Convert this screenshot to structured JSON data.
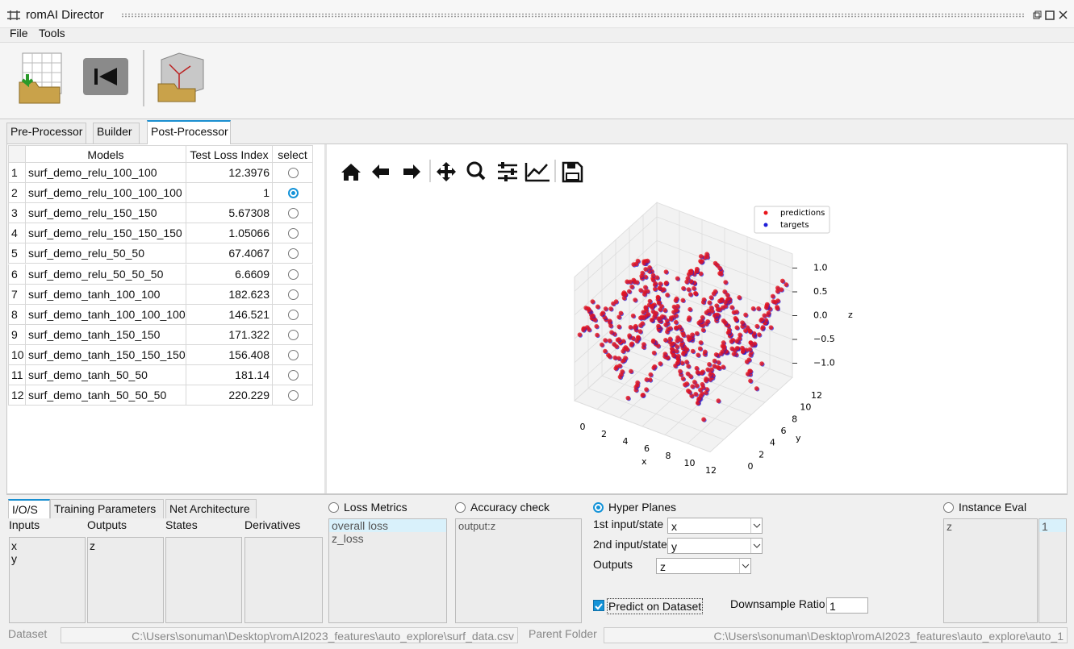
{
  "window": {
    "title": "romAI Director"
  },
  "menu": [
    "File",
    "Tools"
  ],
  "tabs": [
    "Pre-Processor",
    "Builder",
    "Post-Processor"
  ],
  "active_tab": 2,
  "models_table": {
    "headers": [
      "Models",
      "Test Loss Index",
      "select"
    ],
    "rows": [
      [
        1,
        "surf_demo_relu_100_100",
        12.3976
      ],
      [
        2,
        "surf_demo_relu_100_100_100",
        1
      ],
      [
        3,
        "surf_demo_relu_150_150",
        5.67308
      ],
      [
        4,
        "surf_demo_relu_150_150_150",
        1.05066
      ],
      [
        5,
        "surf_demo_relu_50_50",
        67.4067
      ],
      [
        6,
        "surf_demo_relu_50_50_50",
        6.6609
      ],
      [
        7,
        "surf_demo_tanh_100_100",
        182.623
      ],
      [
        8,
        "surf_demo_tanh_100_100_100",
        146.521
      ],
      [
        9,
        "surf_demo_tanh_150_150",
        171.322
      ],
      [
        10,
        "surf_demo_tanh_150_150_150",
        156.408
      ],
      [
        11,
        "surf_demo_tanh_50_50",
        181.14
      ],
      [
        12,
        "surf_demo_tanh_50_50_50",
        220.229
      ]
    ],
    "selected": 1
  },
  "plot": {
    "legend": [
      {
        "name": "predictions",
        "color": "#e8141a"
      },
      {
        "name": "targets",
        "color": "#1f1fd8"
      }
    ],
    "xlabel": "x",
    "ylabel": "y",
    "zlabel": "z",
    "xticks": [
      0,
      2,
      4,
      6,
      8,
      10,
      12
    ],
    "yticks": [
      0,
      2,
      4,
      6,
      8,
      10,
      12
    ],
    "zticks": [
      {
        "value": 1,
        "label": "1.0"
      },
      {
        "value": 0.5,
        "label": "0.5"
      },
      {
        "value": 0,
        "label": "0.0"
      },
      {
        "value": -0.5,
        "label": "−0.5"
      },
      {
        "value": -1,
        "label": "−1.0"
      }
    ]
  },
  "bottom_tabs": [
    "I/O/S",
    "Training Parameters",
    "Net Architecture"
  ],
  "active_bottom_tab": 0,
  "ios": {
    "headers": [
      "Inputs",
      "Outputs",
      "States",
      "Derivatives"
    ],
    "inputs": [
      "x",
      "y"
    ],
    "outputs": [
      "z"
    ]
  },
  "loss_metrics": {
    "label": "Loss Metrics",
    "selected": false,
    "items": [
      "overall loss",
      "z_loss"
    ]
  },
  "accuracy_check": {
    "label": "Accuracy check",
    "selected": false,
    "items": [
      "output:z"
    ]
  },
  "hyper_planes": {
    "label": "Hyper Planes",
    "selected": true,
    "fields": [
      {
        "label": "1st input/state",
        "value": "x"
      },
      {
        "label": "2nd input/state",
        "value": "y"
      },
      {
        "label": "Outputs",
        "value": "z"
      }
    ],
    "predict_on_dataset": {
      "label": "Predict on Dataset",
      "checked": true
    },
    "downsample": {
      "label": "Downsample Ratio",
      "value": "1"
    }
  },
  "instance_eval": {
    "label": "Instance Eval",
    "selected": false,
    "rows": [
      [
        "z",
        "1"
      ]
    ]
  },
  "footer": {
    "dataset_label": "Dataset",
    "dataset_path": "C:\\Users\\sonuman\\Desktop\\romAI2023_features\\auto_explore\\surf_data.csv",
    "parent_label": "Parent Folder",
    "parent_path": "C:\\Users\\sonuman\\Desktop\\romAI2023_features\\auto_explore\\auto_1"
  }
}
